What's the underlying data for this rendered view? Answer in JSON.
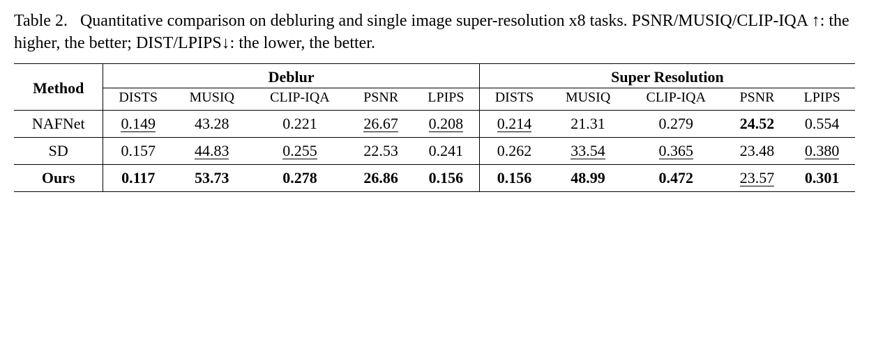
{
  "caption": {
    "label": "Table 2.",
    "text_a": "Quantitative comparison on debluring and single image super-resolution x8 tasks.  PSNR/MUSIQ/CLIP-IQA ",
    "up_arrow": "↑",
    "text_b": ": the higher, the better; DIST/LPIPS",
    "down_arrow": "↓",
    "text_c": ": the lower, the better."
  },
  "table": {
    "method_header": "Method",
    "groups": [
      "Deblur",
      "Super Resolution"
    ],
    "metrics": [
      "DISTS",
      "MUSIQ",
      "CLIP-IQA",
      "PSNR",
      "LPIPS"
    ],
    "rows": [
      {
        "method": "NAFNet",
        "method_bold": false,
        "deblur": [
          {
            "v": "0.149",
            "style": "u"
          },
          {
            "v": "43.28",
            "style": ""
          },
          {
            "v": "0.221",
            "style": ""
          },
          {
            "v": "26.67",
            "style": "u"
          },
          {
            "v": "0.208",
            "style": "u"
          }
        ],
        "sr": [
          {
            "v": "0.214",
            "style": "u"
          },
          {
            "v": "21.31",
            "style": ""
          },
          {
            "v": "0.279",
            "style": ""
          },
          {
            "v": "24.52",
            "style": "b"
          },
          {
            "v": "0.554",
            "style": ""
          }
        ]
      },
      {
        "method": "SD",
        "method_bold": false,
        "deblur": [
          {
            "v": "0.157",
            "style": ""
          },
          {
            "v": "44.83",
            "style": "u"
          },
          {
            "v": "0.255",
            "style": "u"
          },
          {
            "v": "22.53",
            "style": ""
          },
          {
            "v": "0.241",
            "style": ""
          }
        ],
        "sr": [
          {
            "v": "0.262",
            "style": ""
          },
          {
            "v": "33.54",
            "style": "u"
          },
          {
            "v": "0.365",
            "style": "u"
          },
          {
            "v": "23.48",
            "style": ""
          },
          {
            "v": "0.380",
            "style": "u"
          }
        ]
      },
      {
        "method": "Ours",
        "method_bold": true,
        "deblur": [
          {
            "v": "0.117",
            "style": "b"
          },
          {
            "v": "53.73",
            "style": "b"
          },
          {
            "v": "0.278",
            "style": "b"
          },
          {
            "v": "26.86",
            "style": "b"
          },
          {
            "v": "0.156",
            "style": "b"
          }
        ],
        "sr": [
          {
            "v": "0.156",
            "style": "b"
          },
          {
            "v": "48.99",
            "style": "b"
          },
          {
            "v": "0.472",
            "style": "b"
          },
          {
            "v": "23.57",
            "style": "u"
          },
          {
            "v": "0.301",
            "style": "b"
          }
        ]
      }
    ]
  }
}
